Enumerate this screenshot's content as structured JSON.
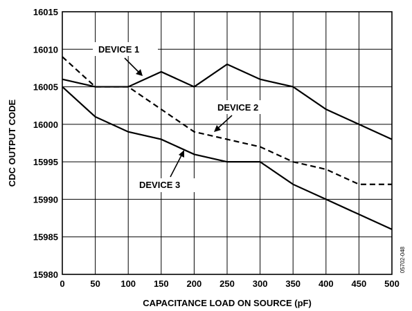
{
  "chart_data": {
    "type": "line",
    "xlabel": "CAPACITANCE LOAD ON SOURCE (pF)",
    "ylabel": "CDC OUTPUT CODE",
    "xlim": [
      0,
      500
    ],
    "ylim": [
      15980,
      16015
    ],
    "x_ticks": [
      "0",
      "50",
      "100",
      "150",
      "200",
      "250",
      "300",
      "350",
      "400",
      "450",
      "500"
    ],
    "y_ticks": [
      "15980",
      "15985",
      "15990",
      "15995",
      "16000",
      "16005",
      "16010",
      "16015"
    ],
    "grid": true,
    "x": [
      0,
      50,
      100,
      150,
      200,
      250,
      300,
      350,
      400,
      450,
      500
    ],
    "series": [
      {
        "name": "DEVICE 1",
        "style": "solid",
        "values": [
          16006,
          16005,
          16005,
          16007,
          16005,
          16008,
          16006,
          16005,
          16002,
          16000,
          15998
        ]
      },
      {
        "name": "DEVICE 2",
        "style": "dashed",
        "values": [
          16009,
          16005,
          16005,
          16002,
          15999,
          15998,
          15997,
          15995,
          15994,
          15992,
          15992
        ]
      },
      {
        "name": "DEVICE 3",
        "style": "solid",
        "values": [
          16005,
          16001,
          15999,
          15998,
          15996,
          15995,
          15995,
          15992,
          15990,
          15988,
          15986
        ]
      }
    ],
    "figure_id": "05702-048"
  }
}
